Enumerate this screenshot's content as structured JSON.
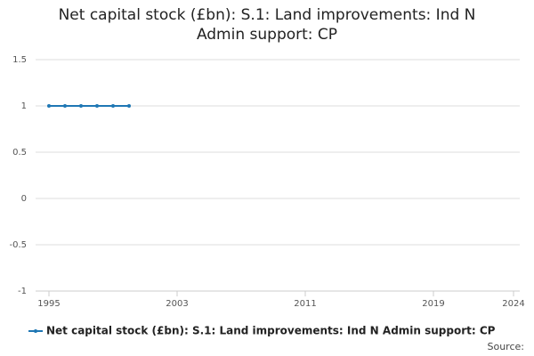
{
  "chart_data": {
    "type": "line",
    "title": "Net capital stock (£bn): S.1: Land improvements: Ind N Admin support: CP",
    "x": [
      1995,
      1996,
      1997,
      1998,
      1999,
      2000
    ],
    "series": [
      {
        "name": "Net capital stock (£bn): S.1: Land improvements: Ind N Admin support: CP",
        "color": "#1f77b4",
        "values": [
          1,
          1,
          1,
          1,
          1,
          1
        ]
      }
    ],
    "xlim": [
      1995,
      2024
    ],
    "xticks": [
      1995,
      2003,
      2011,
      2019,
      2024
    ],
    "ylim": [
      -1,
      1.5
    ],
    "yticks": [
      -1,
      -0.5,
      0,
      0.5,
      1,
      1.5
    ],
    "grid": true,
    "legend": "bottom",
    "source": "Source:"
  }
}
